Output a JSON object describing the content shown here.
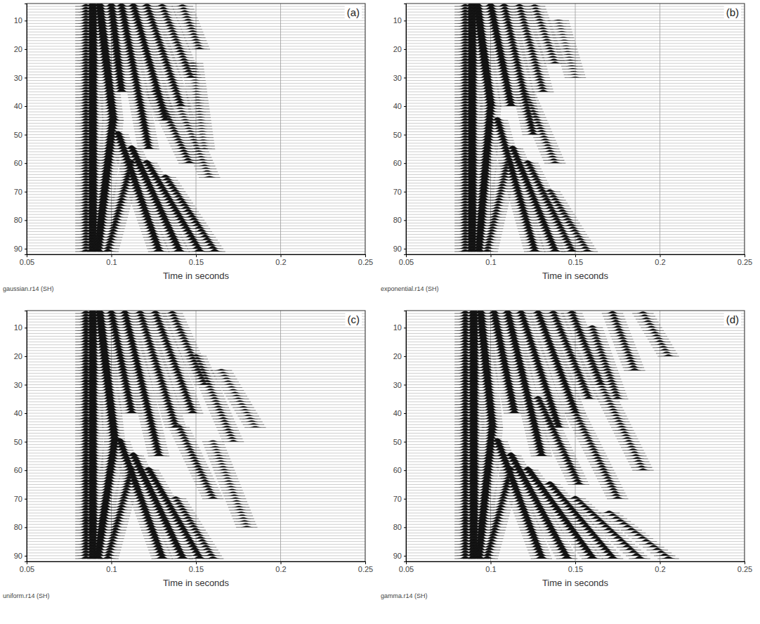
{
  "chart_data": [
    {
      "type": "wiggle",
      "title": "gaussian.r14 (SH)",
      "annotations": [
        "(a)"
      ],
      "x_label": "Time in seconds",
      "xlim": [
        0.05,
        0.25
      ],
      "xticks": [
        0.05,
        0.1,
        0.15,
        0.2,
        0.25
      ],
      "ylim": [
        4,
        92
      ],
      "yticks": [
        10,
        20,
        30,
        40,
        50,
        60,
        70,
        80,
        90
      ],
      "grid": true,
      "traces": [
        5,
        91
      ],
      "events": [
        {
          "traces": [
            5,
            91
          ],
          "time": [
            0.085,
            0.085
          ],
          "amplitude": 0.5
        },
        {
          "traces": [
            5,
            91
          ],
          "time": [
            0.089,
            0.089
          ],
          "amplitude": 1.3
        },
        {
          "traces": [
            5,
            45
          ],
          "time": [
            0.093,
            0.101
          ],
          "amplitude": 1.1
        },
        {
          "traces": [
            45,
            91
          ],
          "time": [
            0.101,
            0.092
          ],
          "amplitude": 1.1
        },
        {
          "traces": [
            5,
            35
          ],
          "time": [
            0.1,
            0.106
          ],
          "amplitude": 0.8
        },
        {
          "traces": [
            5,
            55
          ],
          "time": [
            0.106,
            0.122
          ],
          "amplitude": 0.7
        },
        {
          "traces": [
            5,
            45
          ],
          "time": [
            0.113,
            0.132
          ],
          "amplitude": 0.7
        },
        {
          "traces": [
            5,
            40
          ],
          "time": [
            0.121,
            0.141
          ],
          "amplitude": 0.6
        },
        {
          "traces": [
            5,
            30
          ],
          "time": [
            0.13,
            0.147
          ],
          "amplitude": 0.5
        },
        {
          "traces": [
            5,
            20
          ],
          "time": [
            0.142,
            0.152
          ],
          "amplitude": 0.4
        },
        {
          "traces": [
            50,
            91
          ],
          "time": [
            0.104,
            0.128
          ],
          "amplitude": 0.8
        },
        {
          "traces": [
            55,
            91
          ],
          "time": [
            0.112,
            0.14
          ],
          "amplitude": 0.8
        },
        {
          "traces": [
            60,
            91
          ],
          "time": [
            0.121,
            0.152
          ],
          "amplitude": 0.7
        },
        {
          "traces": [
            65,
            91
          ],
          "time": [
            0.132,
            0.161
          ],
          "amplitude": 0.6
        },
        {
          "traces": [
            35,
            60
          ],
          "time": [
            0.126,
            0.146
          ],
          "amplitude": 0.5
        },
        {
          "traces": [
            40,
            65
          ],
          "time": [
            0.14,
            0.158
          ],
          "amplitude": 0.3
        },
        {
          "traces": [
            25,
            55
          ],
          "time": [
            0.148,
            0.155
          ],
          "amplitude": 0.2
        },
        {
          "traces": [
            60,
            91
          ],
          "time": [
            0.112,
            0.098
          ],
          "amplitude": 0.6
        }
      ]
    },
    {
      "type": "wiggle",
      "title": "exponential.r14 (SH)",
      "annotations": [
        "(b)"
      ],
      "x_label": "Time in seconds",
      "xlim": [
        0.05,
        0.25
      ],
      "xticks": [
        0.05,
        0.1,
        0.15,
        0.2,
        0.25
      ],
      "ylim": [
        4,
        92
      ],
      "yticks": [
        10,
        20,
        30,
        40,
        50,
        60,
        70,
        80,
        90
      ],
      "grid": true,
      "traces": [
        5,
        91
      ],
      "events": [
        {
          "traces": [
            5,
            91
          ],
          "time": [
            0.085,
            0.085
          ],
          "amplitude": 0.5
        },
        {
          "traces": [
            5,
            91
          ],
          "time": [
            0.089,
            0.089
          ],
          "amplitude": 1.3
        },
        {
          "traces": [
            5,
            40
          ],
          "time": [
            0.092,
            0.1
          ],
          "amplitude": 1.1
        },
        {
          "traces": [
            40,
            91
          ],
          "time": [
            0.1,
            0.093
          ],
          "amplitude": 1.0
        },
        {
          "traces": [
            5,
            40
          ],
          "time": [
            0.1,
            0.112
          ],
          "amplitude": 0.8
        },
        {
          "traces": [
            5,
            50
          ],
          "time": [
            0.108,
            0.125
          ],
          "amplitude": 0.6
        },
        {
          "traces": [
            5,
            35
          ],
          "time": [
            0.117,
            0.131
          ],
          "amplitude": 0.5
        },
        {
          "traces": [
            5,
            25
          ],
          "time": [
            0.126,
            0.138
          ],
          "amplitude": 0.4
        },
        {
          "traces": [
            45,
            91
          ],
          "time": [
            0.104,
            0.126
          ],
          "amplitude": 0.7
        },
        {
          "traces": [
            55,
            91
          ],
          "time": [
            0.113,
            0.138
          ],
          "amplitude": 0.7
        },
        {
          "traces": [
            60,
            91
          ],
          "time": [
            0.122,
            0.148
          ],
          "amplitude": 0.6
        },
        {
          "traces": [
            70,
            91
          ],
          "time": [
            0.135,
            0.157
          ],
          "amplitude": 0.5
        },
        {
          "traces": [
            35,
            60
          ],
          "time": [
            0.12,
            0.138
          ],
          "amplitude": 0.4
        },
        {
          "traces": [
            10,
            30
          ],
          "time": [
            0.14,
            0.15
          ],
          "amplitude": 0.2
        },
        {
          "traces": [
            60,
            91
          ],
          "time": [
            0.11,
            0.098
          ],
          "amplitude": 0.5
        }
      ]
    },
    {
      "type": "wiggle",
      "title": "uniform.r14 (SH)",
      "annotations": [
        "(c)"
      ],
      "x_label": "Time in seconds",
      "xlim": [
        0.05,
        0.25
      ],
      "xticks": [
        0.05,
        0.1,
        0.15,
        0.2,
        0.25
      ],
      "ylim": [
        4,
        92
      ],
      "yticks": [
        10,
        20,
        30,
        40,
        50,
        60,
        70,
        80,
        90
      ],
      "grid": true,
      "traces": [
        5,
        91
      ],
      "events": [
        {
          "traces": [
            5,
            91
          ],
          "time": [
            0.085,
            0.085
          ],
          "amplitude": 0.6
        },
        {
          "traces": [
            5,
            91
          ],
          "time": [
            0.089,
            0.089
          ],
          "amplitude": 1.2
        },
        {
          "traces": [
            5,
            50
          ],
          "time": [
            0.093,
            0.102
          ],
          "amplitude": 1.1
        },
        {
          "traces": [
            50,
            91
          ],
          "time": [
            0.102,
            0.092
          ],
          "amplitude": 1.0
        },
        {
          "traces": [
            5,
            40
          ],
          "time": [
            0.1,
            0.112
          ],
          "amplitude": 0.7
        },
        {
          "traces": [
            5,
            55
          ],
          "time": [
            0.108,
            0.128
          ],
          "amplitude": 0.7
        },
        {
          "traces": [
            5,
            45
          ],
          "time": [
            0.117,
            0.138
          ],
          "amplitude": 0.6
        },
        {
          "traces": [
            5,
            40
          ],
          "time": [
            0.126,
            0.148
          ],
          "amplitude": 0.6
        },
        {
          "traces": [
            5,
            30
          ],
          "time": [
            0.136,
            0.155
          ],
          "amplitude": 0.5
        },
        {
          "traces": [
            20,
            50
          ],
          "time": [
            0.15,
            0.172
          ],
          "amplitude": 0.4
        },
        {
          "traces": [
            25,
            45
          ],
          "time": [
            0.165,
            0.185
          ],
          "amplitude": 0.3
        },
        {
          "traces": [
            50,
            91
          ],
          "time": [
            0.105,
            0.13
          ],
          "amplitude": 0.8
        },
        {
          "traces": [
            55,
            91
          ],
          "time": [
            0.113,
            0.142
          ],
          "amplitude": 0.8
        },
        {
          "traces": [
            60,
            91
          ],
          "time": [
            0.122,
            0.152
          ],
          "amplitude": 0.7
        },
        {
          "traces": [
            70,
            91
          ],
          "time": [
            0.138,
            0.16
          ],
          "amplitude": 0.5
        },
        {
          "traces": [
            45,
            70
          ],
          "time": [
            0.14,
            0.16
          ],
          "amplitude": 0.5
        },
        {
          "traces": [
            50,
            80
          ],
          "time": [
            0.16,
            0.18
          ],
          "amplitude": 0.3
        },
        {
          "traces": [
            60,
            91
          ],
          "time": [
            0.112,
            0.098
          ],
          "amplitude": 0.6
        }
      ]
    },
    {
      "type": "wiggle",
      "title": "gamma.r14 (SH)",
      "annotations": [
        "(d)"
      ],
      "x_label": "Time in seconds",
      "xlim": [
        0.05,
        0.25
      ],
      "xticks": [
        0.05,
        0.1,
        0.15,
        0.2,
        0.25
      ],
      "ylim": [
        4,
        92
      ],
      "yticks": [
        10,
        20,
        30,
        40,
        50,
        60,
        70,
        80,
        90
      ],
      "grid": true,
      "traces": [
        5,
        91
      ],
      "events": [
        {
          "traces": [
            5,
            91
          ],
          "time": [
            0.085,
            0.085
          ],
          "amplitude": 0.6
        },
        {
          "traces": [
            5,
            91
          ],
          "time": [
            0.09,
            0.09
          ],
          "amplitude": 1.3
        },
        {
          "traces": [
            5,
            45
          ],
          "time": [
            0.094,
            0.101
          ],
          "amplitude": 1.0
        },
        {
          "traces": [
            45,
            91
          ],
          "time": [
            0.101,
            0.093
          ],
          "amplitude": 1.0
        },
        {
          "traces": [
            5,
            40
          ],
          "time": [
            0.102,
            0.114
          ],
          "amplitude": 0.8
        },
        {
          "traces": [
            5,
            55
          ],
          "time": [
            0.11,
            0.13
          ],
          "amplitude": 0.8
        },
        {
          "traces": [
            5,
            45
          ],
          "time": [
            0.118,
            0.14
          ],
          "amplitude": 0.7
        },
        {
          "traces": [
            5,
            40
          ],
          "time": [
            0.128,
            0.15
          ],
          "amplitude": 0.7
        },
        {
          "traces": [
            5,
            35
          ],
          "time": [
            0.137,
            0.158
          ],
          "amplitude": 0.6
        },
        {
          "traces": [
            5,
            30
          ],
          "time": [
            0.148,
            0.165
          ],
          "amplitude": 0.6
        },
        {
          "traces": [
            10,
            35
          ],
          "time": [
            0.16,
            0.175
          ],
          "amplitude": 0.5
        },
        {
          "traces": [
            5,
            25
          ],
          "time": [
            0.172,
            0.185
          ],
          "amplitude": 0.5
        },
        {
          "traces": [
            5,
            20
          ],
          "time": [
            0.19,
            0.205
          ],
          "amplitude": 0.4
        },
        {
          "traces": [
            50,
            91
          ],
          "time": [
            0.104,
            0.13
          ],
          "amplitude": 0.8
        },
        {
          "traces": [
            55,
            91
          ],
          "time": [
            0.112,
            0.145
          ],
          "amplitude": 0.8
        },
        {
          "traces": [
            60,
            91
          ],
          "time": [
            0.122,
            0.16
          ],
          "amplitude": 0.8
        },
        {
          "traces": [
            65,
            91
          ],
          "time": [
            0.135,
            0.172
          ],
          "amplitude": 0.7
        },
        {
          "traces": [
            70,
            91
          ],
          "time": [
            0.15,
            0.188
          ],
          "amplitude": 0.6
        },
        {
          "traces": [
            75,
            91
          ],
          "time": [
            0.17,
            0.205
          ],
          "amplitude": 0.5
        },
        {
          "traces": [
            35,
            65
          ],
          "time": [
            0.128,
            0.152
          ],
          "amplitude": 0.6
        },
        {
          "traces": [
            40,
            70
          ],
          "time": [
            0.15,
            0.175
          ],
          "amplitude": 0.5
        },
        {
          "traces": [
            30,
            60
          ],
          "time": [
            0.165,
            0.19
          ],
          "amplitude": 0.4
        },
        {
          "traces": [
            60,
            91
          ],
          "time": [
            0.112,
            0.098
          ],
          "amplitude": 0.6
        }
      ]
    }
  ]
}
